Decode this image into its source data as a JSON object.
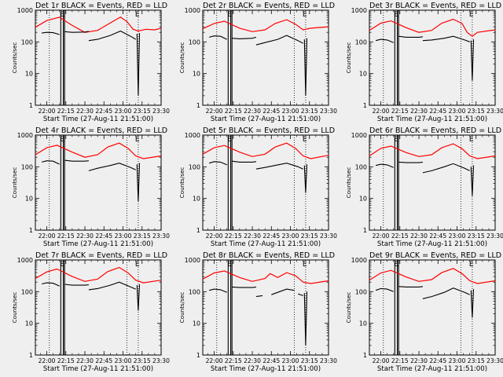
{
  "chart_data": {
    "type": "line",
    "layout": "3x3 grid of detector panels",
    "common": {
      "xlabel": "Start Time (27-Aug-11 21:51:00)",
      "ylabel": "Counts/sec",
      "x_tick_labels": [
        "22:00",
        "22:15",
        "22:30",
        "22:45",
        "23:00",
        "23:15",
        "23:30"
      ],
      "x_tick_minutes": [
        0,
        15,
        30,
        45,
        60,
        75,
        90
      ],
      "xlim_minutes": [
        -9,
        90
      ],
      "x_origin": "22:00",
      "y_scale": "log",
      "ylim": [
        1,
        1000
      ],
      "y_tick_labels": [
        "1",
        "10",
        "100",
        "1000"
      ],
      "y_tick_values": [
        1,
        10,
        100,
        1000
      ],
      "grid": false,
      "vertical_marker_lines_minutes": [
        2,
        11,
        13,
        14,
        63,
        72
      ],
      "markers": [
        "E",
        "E"
      ],
      "series_colors": {
        "events": "#000000",
        "lld": "#ff0000"
      }
    },
    "panels": [
      {
        "title": "Det 1r BLACK = Events, RED = LLD",
        "lld": {
          "x": [
            -9,
            0,
            10,
            20,
            30,
            40,
            50,
            58,
            63,
            68,
            72,
            78,
            85,
            90
          ],
          "y": [
            290,
            470,
            600,
            330,
            200,
            230,
            400,
            610,
            440,
            250,
            220,
            250,
            240,
            270
          ]
        },
        "events": {
          "segments": [
            {
              "x": [
                -4,
                0,
                5,
                10
              ],
              "y": [
                190,
                200,
                195,
                170
              ]
            },
            {
              "x": [
                14,
                20,
                30,
                33
              ],
              "y": [
                210,
                200,
                205,
                215
              ]
            },
            {
              "x": [
                33,
                40,
                50,
                58,
                66,
                70
              ],
              "y": [
                110,
                120,
                160,
                220,
                150,
                120
              ]
            },
            {
              "x": [
                71,
                72,
                73
              ],
              "y": [
                180,
                2,
                190
              ]
            }
          ]
        }
      },
      {
        "title": "Det 2r BLACK = Events, RED = LLD",
        "lld": {
          "x": [
            -9,
            0,
            8,
            20,
            30,
            40,
            48,
            57,
            64,
            70,
            76,
            90
          ],
          "y": [
            260,
            380,
            450,
            270,
            210,
            240,
            380,
            500,
            360,
            240,
            270,
            300
          ]
        },
        "events": {
          "segments": [
            {
              "x": [
                -4,
                0,
                5,
                10
              ],
              "y": [
                140,
                155,
                150,
                120
              ]
            },
            {
              "x": [
                14,
                20,
                30,
                33
              ],
              "y": [
                130,
                125,
                130,
                140
              ]
            },
            {
              "x": [
                33,
                40,
                50,
                57,
                66,
                70
              ],
              "y": [
                80,
                95,
                120,
                160,
                110,
                90
              ]
            },
            {
              "x": [
                71,
                72,
                73
              ],
              "y": [
                120,
                2,
                130
              ]
            }
          ]
        }
      },
      {
        "title": "Det 3r BLACK = Events, RED = LLD",
        "lld": {
          "x": [
            -9,
            0,
            8,
            20,
            30,
            40,
            48,
            57,
            64,
            68,
            72,
            76,
            90
          ],
          "y": [
            230,
            390,
            460,
            280,
            200,
            230,
            390,
            520,
            380,
            200,
            150,
            200,
            240
          ]
        },
        "events": {
          "segments": [
            {
              "x": [
                -4,
                0,
                5,
                10
              ],
              "y": [
                110,
                120,
                115,
                95
              ]
            },
            {
              "x": [
                14,
                20,
                30,
                33
              ],
              "y": [
                150,
                140,
                140,
                145
              ]
            },
            {
              "x": [
                33,
                40,
                50,
                57,
                66,
                70
              ],
              "y": [
                110,
                115,
                130,
                150,
                115,
                100
              ]
            },
            {
              "x": [
                71,
                72,
                73
              ],
              "y": [
                110,
                6,
                120
              ]
            }
          ]
        }
      },
      {
        "title": "Det 4r BLACK = Events, RED = LLD",
        "lld": {
          "x": [
            -9,
            0,
            8,
            20,
            30,
            40,
            48,
            57,
            64,
            70,
            76,
            90
          ],
          "y": [
            240,
            400,
            480,
            290,
            200,
            240,
            420,
            560,
            380,
            220,
            180,
            220
          ]
        },
        "events": {
          "segments": [
            {
              "x": [
                -4,
                0,
                5,
                10
              ],
              "y": [
                140,
                155,
                150,
                120
              ]
            },
            {
              "x": [
                14,
                20,
                30,
                33
              ],
              "y": [
                160,
                150,
                150,
                155
              ]
            },
            {
              "x": [
                33,
                40,
                50,
                57,
                66,
                70
              ],
              "y": [
                75,
                90,
                110,
                130,
                95,
                80
              ]
            },
            {
              "x": [
                71,
                72,
                73
              ],
              "y": [
                120,
                8,
                130
              ]
            }
          ]
        }
      },
      {
        "title": "Det 5r BLACK = Events, RED = LLD",
        "lld": {
          "x": [
            -9,
            0,
            8,
            20,
            30,
            40,
            48,
            57,
            64,
            70,
            76,
            90
          ],
          "y": [
            250,
            400,
            470,
            290,
            210,
            250,
            420,
            560,
            380,
            220,
            180,
            230
          ]
        },
        "events": {
          "segments": [
            {
              "x": [
                -4,
                0,
                5,
                10
              ],
              "y": [
                130,
                145,
                140,
                115
              ]
            },
            {
              "x": [
                14,
                20,
                30,
                33
              ],
              "y": [
                150,
                140,
                140,
                145
              ]
            },
            {
              "x": [
                33,
                40,
                50,
                57,
                66,
                70
              ],
              "y": [
                85,
                95,
                115,
                130,
                100,
                85
              ]
            },
            {
              "x": [
                71,
                72,
                73
              ],
              "y": [
                110,
                15,
                120
              ]
            }
          ]
        }
      },
      {
        "title": "Det 6r BLACK = Events, RED = LLD",
        "lld": {
          "x": [
            -9,
            0,
            8,
            20,
            30,
            40,
            48,
            57,
            64,
            70,
            76,
            90
          ],
          "y": [
            220,
            380,
            450,
            280,
            210,
            240,
            400,
            530,
            370,
            220,
            180,
            220
          ]
        },
        "events": {
          "segments": [
            {
              "x": [
                -4,
                0,
                5,
                10
              ],
              "y": [
                110,
                120,
                115,
                95
              ]
            },
            {
              "x": [
                14,
                20,
                30,
                33
              ],
              "y": [
                140,
                135,
                135,
                140
              ]
            },
            {
              "x": [
                33,
                40,
                50,
                57,
                66,
                70
              ],
              "y": [
                65,
                75,
                100,
                125,
                90,
                75
              ]
            },
            {
              "x": [
                71,
                72,
                73
              ],
              "y": [
                100,
                12,
                110
              ]
            }
          ]
        }
      },
      {
        "title": "Det 7r BLACK = Events, RED = LLD",
        "lld": {
          "x": [
            -9,
            0,
            8,
            20,
            30,
            40,
            48,
            57,
            64,
            70,
            76,
            90
          ],
          "y": [
            260,
            420,
            520,
            300,
            210,
            250,
            430,
            580,
            390,
            230,
            190,
            230
          ]
        },
        "events": {
          "segments": [
            {
              "x": [
                -4,
                0,
                5,
                10
              ],
              "y": [
                175,
                190,
                185,
                150
              ]
            },
            {
              "x": [
                14,
                20,
                30,
                33
              ],
              "y": [
                170,
                160,
                160,
                165
              ]
            },
            {
              "x": [
                33,
                40,
                50,
                57,
                66,
                70
              ],
              "y": [
                115,
                125,
                160,
                200,
                140,
                120
              ]
            },
            {
              "x": [
                71,
                72,
                73
              ],
              "y": [
                160,
                25,
                170
              ]
            }
          ]
        }
      },
      {
        "title": "Det 8r BLACK = Events, RED = LLD",
        "lld": {
          "x": [
            -9,
            0,
            8,
            20,
            30,
            40,
            44,
            50,
            57,
            64,
            70,
            76,
            90
          ],
          "y": [
            250,
            390,
            450,
            280,
            210,
            260,
            370,
            280,
            400,
            320,
            200,
            180,
            220
          ]
        },
        "events": {
          "segments": [
            {
              "x": [
                -4,
                0,
                5,
                10
              ],
              "y": [
                110,
                120,
                115,
                95
              ]
            },
            {
              "x": [
                14,
                20,
                30,
                33
              ],
              "y": [
                140,
                135,
                135,
                140
              ]
            },
            {
              "x": [
                33,
                38
              ],
              "y": [
                70,
                75
              ]
            },
            {
              "x": [
                45,
                50,
                57,
                63
              ],
              "y": [
                80,
                95,
                120,
                110
              ]
            },
            {
              "x": [
                66,
                70
              ],
              "y": [
                85,
                75
              ]
            },
            {
              "x": [
                71,
                72,
                73
              ],
              "y": [
                90,
                2,
                100
              ]
            }
          ]
        }
      },
      {
        "title": "Det 9r BLACK = Events, RED = LLD",
        "lld": {
          "x": [
            -9,
            0,
            8,
            20,
            30,
            40,
            48,
            57,
            64,
            70,
            76,
            90
          ],
          "y": [
            230,
            390,
            470,
            290,
            210,
            240,
            400,
            540,
            370,
            220,
            180,
            220
          ]
        },
        "events": {
          "segments": [
            {
              "x": [
                -4,
                0,
                5,
                10
              ],
              "y": [
                110,
                125,
                120,
                100
              ]
            },
            {
              "x": [
                14,
                20,
                30,
                33
              ],
              "y": [
                145,
                140,
                140,
                145
              ]
            },
            {
              "x": [
                33,
                40,
                50,
                57,
                66,
                70
              ],
              "y": [
                60,
                70,
                95,
                130,
                95,
                80
              ]
            },
            {
              "x": [
                71,
                72,
                73
              ],
              "y": [
                110,
                15,
                120
              ]
            }
          ]
        }
      }
    ]
  }
}
